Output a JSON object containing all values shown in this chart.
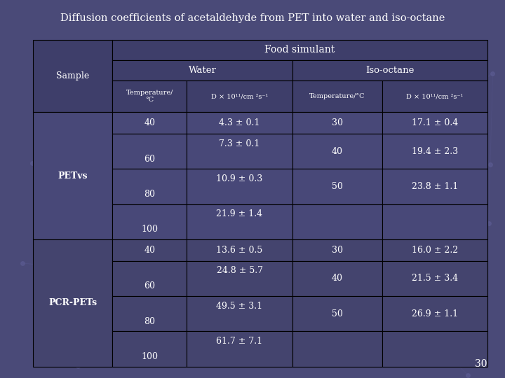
{
  "title": "Diffusion coefficients of acetaldehyde from PET into water and iso-octane",
  "background_color": "#4a4a78",
  "header_bg_color": "#3e3e6a",
  "cell_bg_petvs": "#484878",
  "cell_bg_pcr": "#44446e",
  "text_color": "#ffffff",
  "border_color": "#000000",
  "page_number": "30",
  "rows": [
    {
      "sample": "PETvs",
      "w_temp": "40",
      "w_d": "4.3 ± 0.1",
      "i_temp": "30",
      "i_d": "17.1 ± 0.4"
    },
    {
      "sample": "",
      "w_temp": "60",
      "w_d": "7.3 ± 0.1",
      "i_temp": "40",
      "i_d": "19.4 ± 2.3"
    },
    {
      "sample": "",
      "w_temp": "80",
      "w_d": "10.9 ± 0.3",
      "i_temp": "50",
      "i_d": "23.8 ± 1.1"
    },
    {
      "sample": "",
      "w_temp": "100",
      "w_d": "21.9 ± 1.4",
      "i_temp": "",
      "i_d": ""
    },
    {
      "sample": "PCR-PETs",
      "w_temp": "40",
      "w_d": "13.6 ± 0.5",
      "i_temp": "30",
      "i_d": "16.0 ± 2.2"
    },
    {
      "sample": "",
      "w_temp": "60",
      "w_d": "24.8 ± 5.7",
      "i_temp": "40",
      "i_d": "21.5 ± 3.4"
    },
    {
      "sample": "",
      "w_temp": "80",
      "w_d": "49.5 ± 3.1",
      "i_temp": "50",
      "i_d": "26.9 ± 1.1"
    },
    {
      "sample": "",
      "w_temp": "100",
      "w_d": "61.7 ± 7.1",
      "i_temp": "",
      "i_d": ""
    }
  ],
  "figsize": [
    7.2,
    5.4
  ],
  "dpi": 100
}
